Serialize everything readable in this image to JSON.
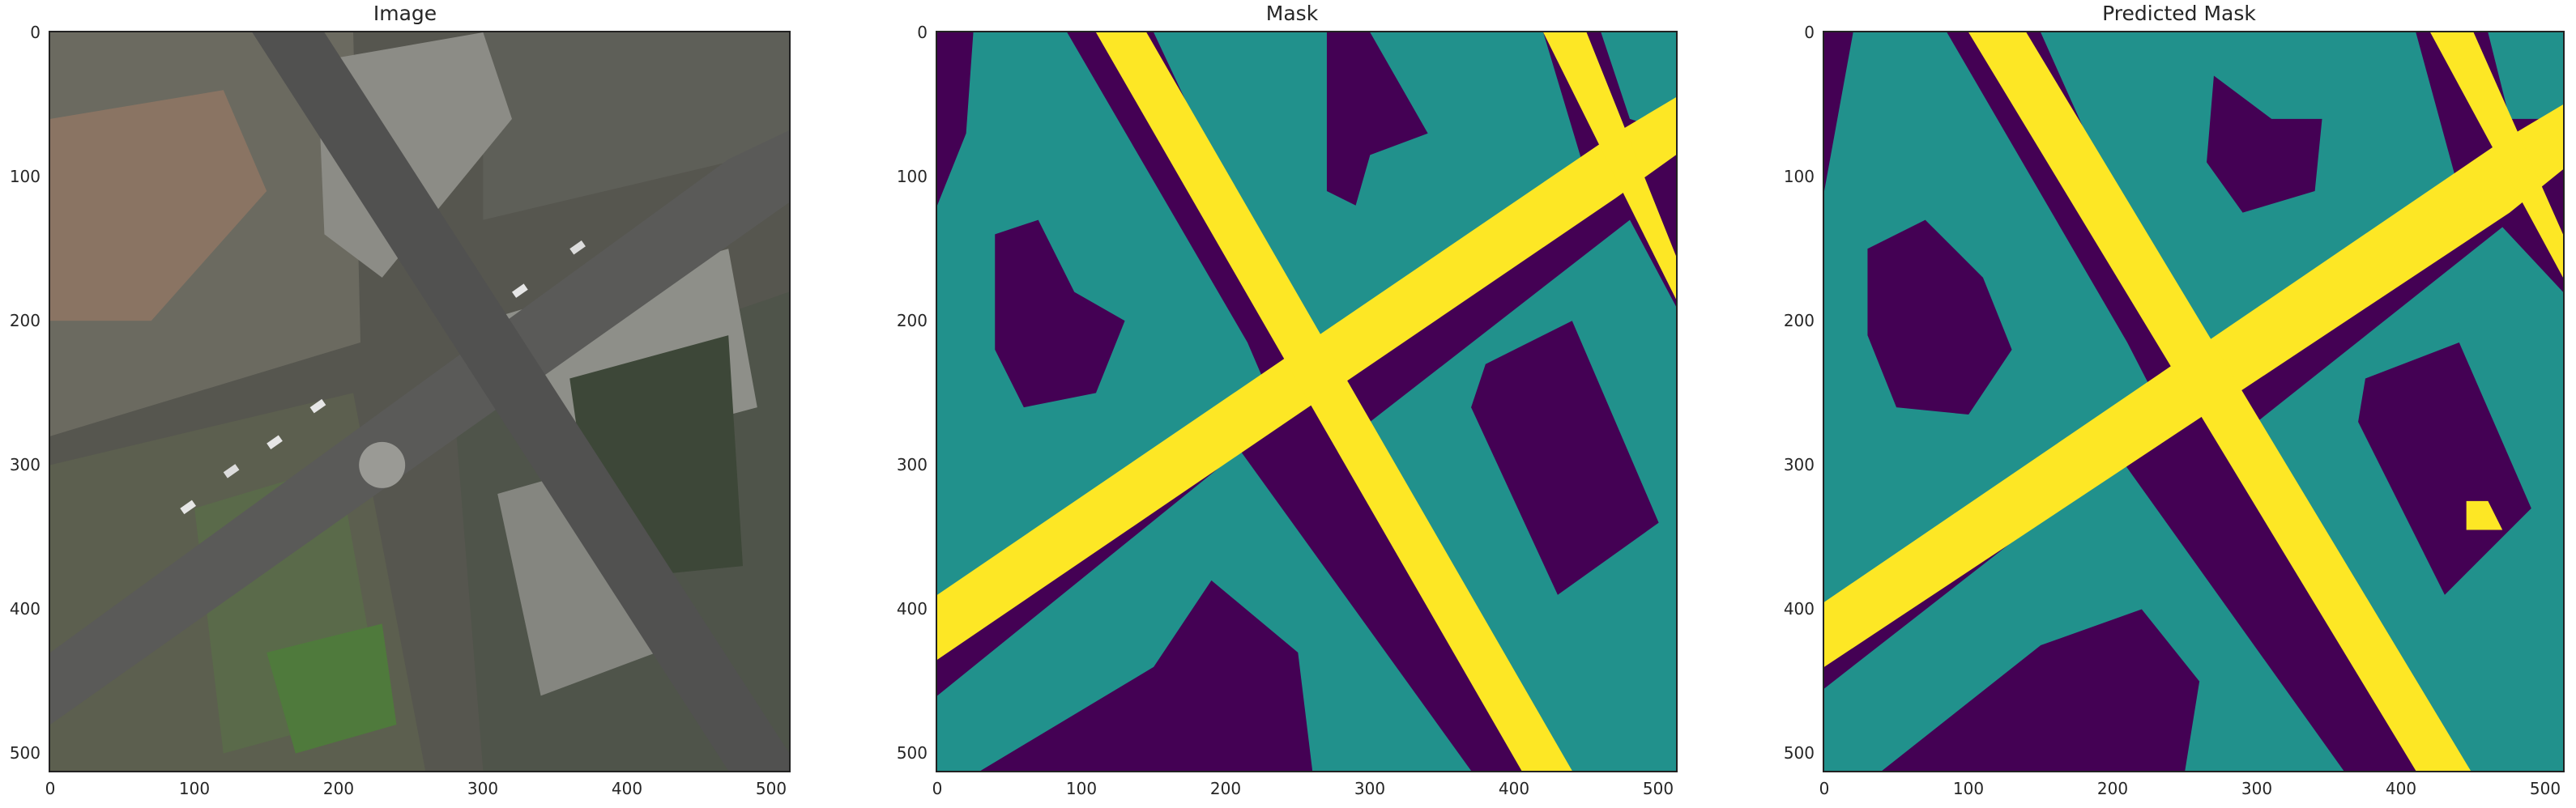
{
  "panels": [
    {
      "id": "image",
      "title": "Image"
    },
    {
      "id": "mask",
      "title": "Mask"
    },
    {
      "id": "predicted",
      "title": "Predicted Mask"
    }
  ],
  "axis": {
    "x_ticks": [
      "0",
      "100",
      "200",
      "300",
      "400",
      "500"
    ],
    "y_ticks": [
      "0",
      "100",
      "200",
      "300",
      "400",
      "500"
    ],
    "range": [
      0,
      512
    ]
  },
  "colors": {
    "class_background": "#440154",
    "class_building": "#21918c",
    "class_road": "#fde725"
  }
}
